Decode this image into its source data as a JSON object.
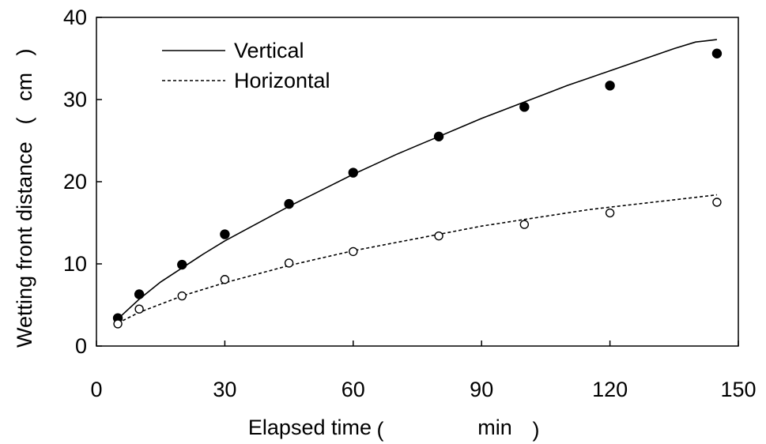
{
  "chart_data": {
    "type": "line",
    "title": "",
    "xlabel": "Elapsed time",
    "xunit": "min",
    "ylabel": "Wetting front distance",
    "yunit": "cm",
    "xlim": [
      0,
      150
    ],
    "ylim": [
      0,
      40
    ],
    "xticks": [
      "0",
      "30",
      "60",
      "90",
      "120",
      "150"
    ],
    "yticks": [
      "0",
      "10",
      "20",
      "30",
      "40"
    ],
    "grid": false,
    "legend_position": "top-left",
    "series": [
      {
        "name": "Vertical",
        "line_style": "solid",
        "line_x": [
          5,
          10,
          15,
          20,
          25,
          30,
          35,
          40,
          45,
          50,
          55,
          60,
          65,
          70,
          75,
          80,
          85,
          90,
          95,
          100,
          105,
          110,
          115,
          120,
          125,
          130,
          135,
          140,
          145
        ],
        "line_y": [
          3.3,
          5.7,
          7.8,
          9.5,
          11.2,
          12.8,
          14.2,
          15.6,
          17.0,
          18.3,
          19.6,
          20.9,
          22.1,
          23.3,
          24.4,
          25.5,
          26.6,
          27.7,
          28.7,
          29.7,
          30.7,
          31.7,
          32.6,
          33.5,
          34.4,
          35.3,
          36.2,
          37.0,
          37.3
        ],
        "marker": "filled-circle",
        "points_x": [
          5,
          10,
          20,
          30,
          45,
          60,
          80,
          100,
          120,
          145
        ],
        "points_y": [
          3.4,
          6.3,
          9.9,
          13.6,
          17.3,
          21.1,
          25.5,
          29.1,
          31.7,
          35.6
        ]
      },
      {
        "name": "Horizontal",
        "line_style": "dashed",
        "line_x": [
          5,
          10,
          15,
          20,
          25,
          30,
          35,
          40,
          45,
          50,
          55,
          60,
          65,
          70,
          75,
          80,
          85,
          90,
          95,
          100,
          105,
          110,
          115,
          120,
          125,
          130,
          135,
          140,
          145
        ],
        "line_y": [
          2.8,
          4.1,
          5.1,
          6.1,
          6.9,
          7.7,
          8.4,
          9.1,
          9.8,
          10.4,
          11.0,
          11.6,
          12.1,
          12.6,
          13.1,
          13.6,
          14.1,
          14.6,
          15.0,
          15.4,
          15.8,
          16.2,
          16.6,
          16.9,
          17.2,
          17.5,
          17.8,
          18.1,
          18.4
        ],
        "marker": "open-circle",
        "points_x": [
          5,
          10,
          20,
          30,
          45,
          60,
          80,
          100,
          120,
          145
        ],
        "points_y": [
          2.7,
          4.5,
          6.1,
          8.1,
          10.1,
          11.5,
          13.4,
          14.8,
          16.2,
          17.5
        ]
      }
    ]
  }
}
